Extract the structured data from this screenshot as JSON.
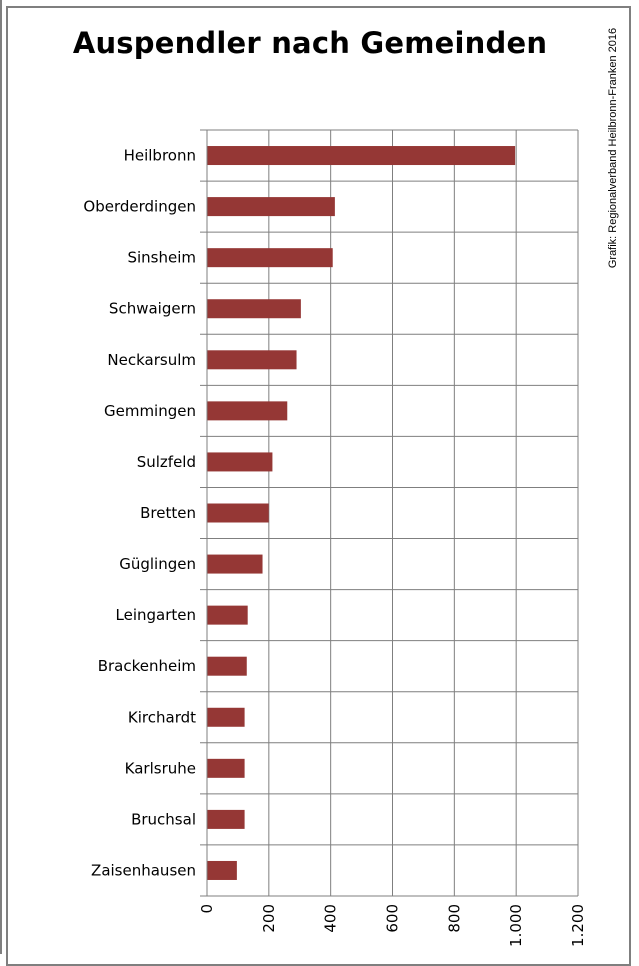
{
  "title": "Auspendler nach Gemeinden",
  "source": "Grafik: Regionalverband Heilbronn-Franken 2016",
  "colors": {
    "bar": "#953735",
    "grid": "#7f7f7f",
    "frame": "#7f7f7f"
  },
  "chart_data": {
    "type": "bar",
    "orientation": "horizontal",
    "title": "Auspendler nach Gemeinden",
    "categories": [
      "Heilbronn",
      "Oberderdingen",
      "Sinsheim",
      "Schwaigern",
      "Neckarsulm",
      "Gemmingen",
      "Sulzfeld",
      "Bretten",
      "Güglingen",
      "Leingarten",
      "Brackenheim",
      "Kirchardt",
      "Karlsruhe",
      "Bruchsal",
      "Zaisenhausen"
    ],
    "values": [
      995,
      412,
      405,
      302,
      288,
      258,
      210,
      198,
      178,
      130,
      127,
      120,
      120,
      120,
      95
    ],
    "xlim": [
      0,
      1200
    ],
    "xticks": [
      0,
      200,
      400,
      600,
      800,
      1000,
      1200
    ],
    "xtick_labels": [
      "0",
      "200",
      "400",
      "600",
      "800",
      "1.000",
      "1.200"
    ],
    "grid": true,
    "legend": "none"
  }
}
